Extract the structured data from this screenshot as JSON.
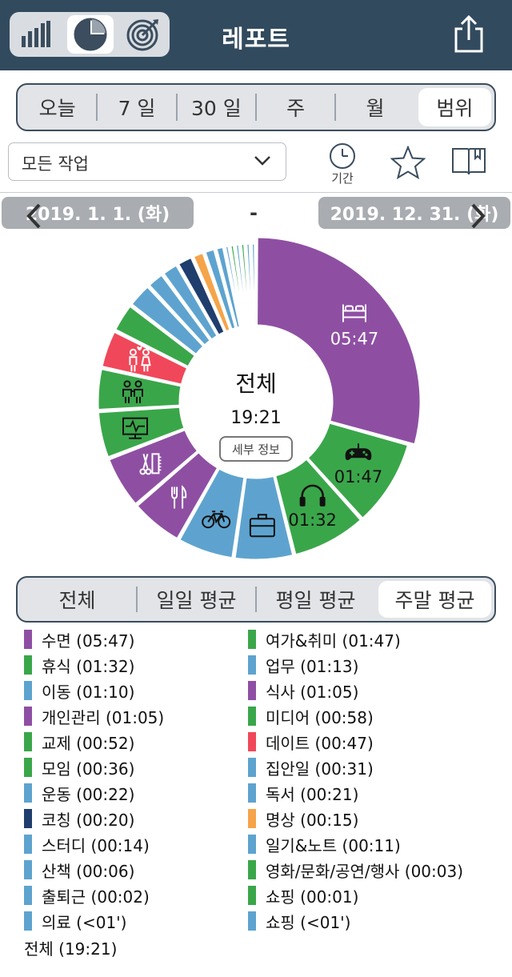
{
  "header": {
    "title": "레포트",
    "view_icons": [
      "bar-chart-icon",
      "pie-chart-icon",
      "target-icon"
    ],
    "active_view": 1
  },
  "period_tabs": {
    "options": [
      "오늘",
      "7 일",
      "30 일",
      "주",
      "월",
      "범위"
    ],
    "active": 5
  },
  "filter": {
    "task_select": "모든 작업",
    "period_label": "기간"
  },
  "date_range": {
    "start": "2019. 1. 1. (화)",
    "separator": "-",
    "end": "2019. 12. 31. (화)"
  },
  "chart_center": {
    "title": "전체",
    "total": "19:21",
    "detail_button": "세부 정보"
  },
  "chart_data": {
    "type": "pie",
    "style": "donut",
    "unit": "hh:mm",
    "total": "19:21",
    "slices": [
      {
        "label": "수면",
        "value": "05:47",
        "minutes": 347,
        "color": "#8e4fa3",
        "icon": "bed-icon",
        "show_value": true
      },
      {
        "label": "여가&취미",
        "value": "01:47",
        "minutes": 107,
        "color": "#3aa64a",
        "icon": "gamepad-icon",
        "show_value": true
      },
      {
        "label": "휴식",
        "value": "01:32",
        "minutes": 92,
        "color": "#3aa64a",
        "icon": "headphones-icon",
        "show_value": true
      },
      {
        "label": "업무",
        "value": "01:13",
        "minutes": 73,
        "color": "#5ea3cf",
        "icon": "briefcase-icon",
        "show_value": false
      },
      {
        "label": "이동",
        "value": "01:10",
        "minutes": 70,
        "color": "#5ea3cf",
        "icon": "bicycle-icon",
        "show_value": false
      },
      {
        "label": "식사",
        "value": "01:05",
        "minutes": 65,
        "color": "#8e4fa3",
        "icon": "utensils-icon",
        "show_value": false
      },
      {
        "label": "개인관리",
        "value": "01:05",
        "minutes": 65,
        "color": "#8e4fa3",
        "icon": "grooming-icon",
        "show_value": false
      },
      {
        "label": "미디어",
        "value": "00:58",
        "minutes": 58,
        "color": "#3aa64a",
        "icon": "monitor-icon",
        "show_value": false
      },
      {
        "label": "교제",
        "value": "00:52",
        "minutes": 52,
        "color": "#3aa64a",
        "icon": "friends-icon",
        "show_value": false
      },
      {
        "label": "데이트",
        "value": "00:47",
        "minutes": 47,
        "color": "#f0485a",
        "icon": "couple-icon",
        "show_value": false
      },
      {
        "label": "모임",
        "value": "00:36",
        "minutes": 36,
        "color": "#3aa64a",
        "icon": "",
        "show_value": false
      },
      {
        "label": "집안일",
        "value": "00:31",
        "minutes": 31,
        "color": "#5ea3cf",
        "icon": "",
        "show_value": false
      },
      {
        "label": "운동",
        "value": "00:22",
        "minutes": 22,
        "color": "#5ea3cf",
        "icon": "",
        "show_value": false
      },
      {
        "label": "독서",
        "value": "00:21",
        "minutes": 21,
        "color": "#5ea3cf",
        "icon": "",
        "show_value": false
      },
      {
        "label": "코칭",
        "value": "00:20",
        "minutes": 20,
        "color": "#1f3e6e",
        "icon": "",
        "show_value": false
      },
      {
        "label": "명상",
        "value": "00:15",
        "minutes": 15,
        "color": "#f5a44a",
        "icon": "",
        "show_value": false
      },
      {
        "label": "스터디",
        "value": "00:14",
        "minutes": 14,
        "color": "#5ea3cf",
        "icon": "",
        "show_value": false
      },
      {
        "label": "일기&노트",
        "value": "00:11",
        "minutes": 11,
        "color": "#5ea3cf",
        "icon": "",
        "show_value": false
      },
      {
        "label": "산책",
        "value": "00:06",
        "minutes": 6,
        "color": "#5ea3cf",
        "icon": "",
        "show_value": false
      },
      {
        "label": "영화/문화/공연/행사",
        "value": "00:03",
        "minutes": 3,
        "color": "#3aa64a",
        "icon": "",
        "show_value": false
      },
      {
        "label": "출퇴근",
        "value": "00:02",
        "minutes": 2,
        "color": "#5ea3cf",
        "icon": "",
        "show_value": false
      },
      {
        "label": "쇼핑",
        "value": "00:01",
        "minutes": 1,
        "color": "#3aa64a",
        "icon": "",
        "show_value": false
      },
      {
        "label": "의료",
        "value": "<01'",
        "minutes": 0.5,
        "color": "#5ea3cf",
        "icon": "",
        "show_value": false
      },
      {
        "label": "쇼핑",
        "value": "<01'",
        "minutes": 0.5,
        "color": "#5ea3cf",
        "icon": "",
        "show_value": false
      }
    ]
  },
  "avg_tabs": {
    "options": [
      "전체",
      "일일 평균",
      "평일 평균",
      "주말 평균"
    ],
    "active": 3
  },
  "legend": {
    "items": [
      {
        "text": "수면 (05:47)",
        "color": "#8e4fa3"
      },
      {
        "text": "여가&취미 (01:47)",
        "color": "#3aa64a"
      },
      {
        "text": "휴식 (01:32)",
        "color": "#3aa64a"
      },
      {
        "text": "업무 (01:13)",
        "color": "#5ea3cf"
      },
      {
        "text": "이동 (01:10)",
        "color": "#5ea3cf"
      },
      {
        "text": "식사 (01:05)",
        "color": "#8e4fa3"
      },
      {
        "text": "개인관리 (01:05)",
        "color": "#8e4fa3"
      },
      {
        "text": "미디어 (00:58)",
        "color": "#3aa64a"
      },
      {
        "text": "교제 (00:52)",
        "color": "#3aa64a"
      },
      {
        "text": "데이트 (00:47)",
        "color": "#f0485a"
      },
      {
        "text": "모임 (00:36)",
        "color": "#3aa64a"
      },
      {
        "text": "집안일 (00:31)",
        "color": "#5ea3cf"
      },
      {
        "text": "운동 (00:22)",
        "color": "#5ea3cf"
      },
      {
        "text": "독서 (00:21)",
        "color": "#5ea3cf"
      },
      {
        "text": "코칭 (00:20)",
        "color": "#1f3e6e"
      },
      {
        "text": "명상 (00:15)",
        "color": "#f5a44a"
      },
      {
        "text": "스터디 (00:14)",
        "color": "#5ea3cf"
      },
      {
        "text": "일기&노트 (00:11)",
        "color": "#5ea3cf"
      },
      {
        "text": "산책 (00:06)",
        "color": "#5ea3cf"
      },
      {
        "text": "영화/문화/공연/행사 (00:03)",
        "color": "#3aa64a"
      },
      {
        "text": "출퇴근 (00:02)",
        "color": "#5ea3cf"
      },
      {
        "text": "쇼핑 (00:01)",
        "color": "#3aa64a"
      },
      {
        "text": "의료 (<01')",
        "color": "#5ea3cf"
      },
      {
        "text": "쇼핑 (<01')",
        "color": "#5ea3cf"
      }
    ],
    "total": "전체 (19:21)"
  }
}
